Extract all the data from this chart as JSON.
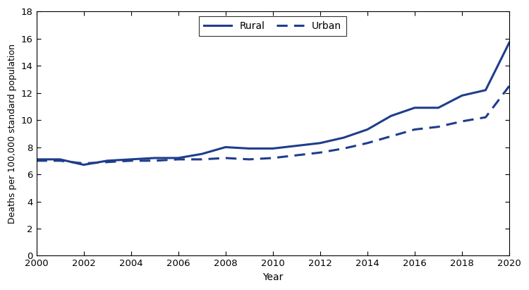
{
  "years": [
    2000,
    2001,
    2002,
    2003,
    2004,
    2005,
    2006,
    2007,
    2008,
    2009,
    2010,
    2011,
    2012,
    2013,
    2014,
    2015,
    2016,
    2017,
    2018,
    2019,
    2020
  ],
  "rural": [
    7.1,
    7.1,
    6.7,
    7.0,
    7.1,
    7.2,
    7.2,
    7.5,
    8.0,
    7.9,
    7.9,
    8.1,
    8.3,
    8.7,
    9.3,
    10.3,
    10.9,
    10.9,
    11.8,
    12.2,
    15.7
  ],
  "urban": [
    7.0,
    7.0,
    6.8,
    6.9,
    7.0,
    7.0,
    7.1,
    7.1,
    7.2,
    7.1,
    7.2,
    7.4,
    7.6,
    7.9,
    8.3,
    8.8,
    9.3,
    9.5,
    9.9,
    10.2,
    12.5
  ],
  "line_color": "#1f3d8c",
  "ylabel": "Deaths per 100,000 standard population",
  "xlabel": "Year",
  "ylim": [
    0,
    18
  ],
  "yticks": [
    0,
    2,
    4,
    6,
    8,
    10,
    12,
    14,
    16,
    18
  ],
  "xticks": [
    2000,
    2002,
    2004,
    2006,
    2008,
    2010,
    2012,
    2014,
    2016,
    2018,
    2020
  ],
  "legend_labels": [
    "Rural",
    "Urban"
  ],
  "linewidth": 2.2,
  "figsize": [
    7.5,
    4.11
  ],
  "dpi": 100
}
